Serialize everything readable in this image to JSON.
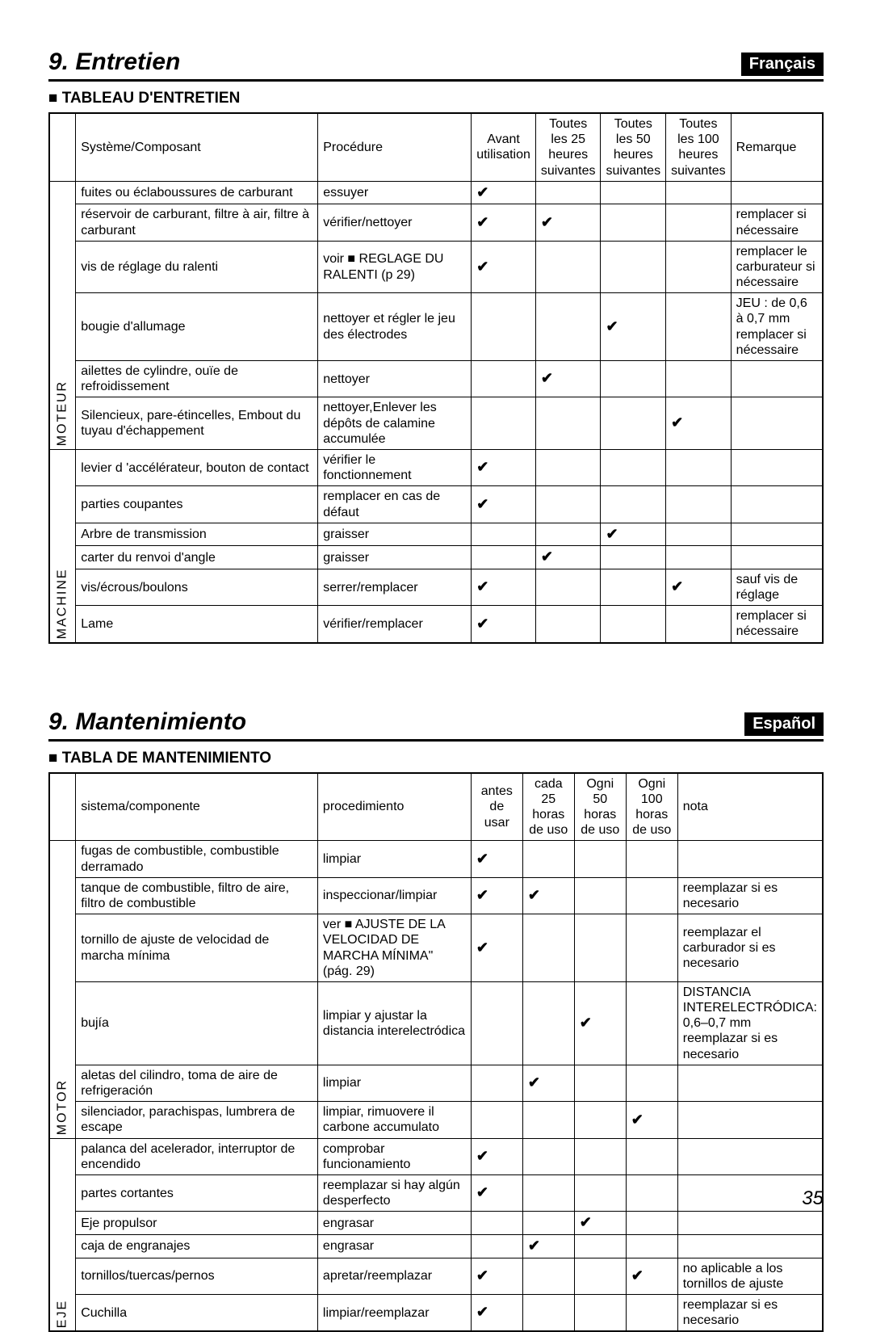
{
  "page_number": "35",
  "checkmark_glyph": "✔",
  "colors": {
    "text": "#000000",
    "background": "#ffffff",
    "badge_bg": "#000000",
    "badge_fg": "#ffffff",
    "border": "#000000"
  },
  "sections": [
    {
      "title": "9. Entretien",
      "lang_badge": "Français",
      "table_title": "TABLEAU D'ENTRETIEN",
      "headers": {
        "system": "Système/Composant",
        "procedure": "Procédure",
        "col1": "Avant utilisation",
        "col2": "Toutes les 25 heures suivantes",
        "col3": "Toutes les 50 heures suivantes",
        "col4": "Toutes les 100 heures suivantes",
        "note": "Remarque"
      },
      "groups": [
        {
          "category": "MOTEUR",
          "rows": [
            {
              "system": "fuites ou éclaboussures de carburant",
              "procedure": "essuyer",
              "c": [
                true,
                false,
                false,
                false
              ],
              "note": ""
            },
            {
              "system": "réservoir de carburant, filtre à air, filtre à carburant",
              "procedure": "vérifier/nettoyer",
              "c": [
                true,
                true,
                false,
                false
              ],
              "note": "remplacer si nécessaire"
            },
            {
              "system": "vis de réglage du ralenti",
              "procedure": "voir ■ REGLAGE DU RALENTI (p 29)",
              "c": [
                true,
                false,
                false,
                false
              ],
              "note": "remplacer le carburateur si nécessaire"
            },
            {
              "system": "bougie d'allumage",
              "procedure": "nettoyer et régler le jeu des électrodes",
              "c": [
                false,
                false,
                true,
                false
              ],
              "note": "JEU : de 0,6 à 0,7 mm remplacer si nécessaire"
            },
            {
              "system": "ailettes de cylindre, ouïe de refroidissement",
              "procedure": "nettoyer",
              "c": [
                false,
                true,
                false,
                false
              ],
              "note": ""
            },
            {
              "system": "Silencieux, pare-étincelles, Embout du tuyau d'échappement",
              "procedure": "nettoyer,Enlever les dépôts de calamine accumulée",
              "c": [
                false,
                false,
                false,
                true
              ],
              "note": ""
            }
          ]
        },
        {
          "category": "MACHINE",
          "rows": [
            {
              "system": "levier d 'accélérateur, bouton de contact",
              "procedure": "vérifier le fonctionnement",
              "c": [
                true,
                false,
                false,
                false
              ],
              "note": ""
            },
            {
              "system": "parties coupantes",
              "procedure": "remplacer en cas de défaut",
              "c": [
                true,
                false,
                false,
                false
              ],
              "note": ""
            },
            {
              "system": "Arbre de transmission",
              "procedure": "graisser",
              "c": [
                false,
                false,
                true,
                false
              ],
              "note": ""
            },
            {
              "system": "carter du renvoi d'angle",
              "procedure": "graisser",
              "c": [
                false,
                true,
                false,
                false
              ],
              "note": ""
            },
            {
              "system": "vis/écrous/boulons",
              "procedure": "serrer/remplacer",
              "c": [
                true,
                false,
                false,
                true
              ],
              "note": "sauf vis de réglage"
            },
            {
              "system": "Lame",
              "procedure": "vérifier/remplacer",
              "c": [
                true,
                false,
                false,
                false
              ],
              "note": "remplacer si nécessaire"
            }
          ]
        }
      ]
    },
    {
      "title": "9. Mantenimiento",
      "lang_badge": "Español",
      "table_title": "TABLA DE MANTENIMIENTO",
      "headers": {
        "system": "sistema/componente",
        "procedure": "procedimiento",
        "col1": "antes de usar",
        "col2": "cada 25 horas de uso",
        "col3": "Ogni 50 horas de uso",
        "col4": "Ogni 100 horas de uso",
        "note": "nota"
      },
      "groups": [
        {
          "category": "MOTOR",
          "rows": [
            {
              "system": "fugas de combustible, combustible derramado",
              "procedure": "limpiar",
              "c": [
                true,
                false,
                false,
                false
              ],
              "note": ""
            },
            {
              "system": "tanque de combustible, filtro de aire, filtro de combustible",
              "procedure": "inspeccionar/limpiar",
              "c": [
                true,
                true,
                false,
                false
              ],
              "note": "reemplazar si es necesario"
            },
            {
              "system": "tornillo de ajuste de velocidad de marcha mínima",
              "procedure": "ver ■ AJUSTE DE LA VELOCIDAD DE MARCHA MÍNIMA\" (pág. 29)",
              "c": [
                true,
                false,
                false,
                false
              ],
              "note": "reemplazar el carburador si es necesario"
            },
            {
              "system": "bujía",
              "procedure": "limpiar y ajustar la distancia interelectródica",
              "c": [
                false,
                false,
                true,
                false
              ],
              "note": "DISTANCIA INTERELECTRÓDICA: 0,6–0,7 mm reemplazar si es necesario"
            },
            {
              "system": "aletas del cilindro, toma de aire de refrigeración",
              "procedure": "limpiar",
              "c": [
                false,
                true,
                false,
                false
              ],
              "note": ""
            },
            {
              "system": "silenciador, parachispas, lumbrera de escape",
              "procedure": "limpiar, rimuovere il carbone accumulato",
              "c": [
                false,
                false,
                false,
                true
              ],
              "note": ""
            }
          ]
        },
        {
          "category": "EJE",
          "rows": [
            {
              "system": "palanca del acelerador, interruptor de encendido",
              "procedure": "comprobar funcionamiento",
              "c": [
                true,
                false,
                false,
                false
              ],
              "note": ""
            },
            {
              "system": "partes cortantes",
              "procedure": "reemplazar si hay algún desperfecto",
              "c": [
                true,
                false,
                false,
                false
              ],
              "note": ""
            },
            {
              "system": "Eje propulsor",
              "procedure": "engrasar",
              "c": [
                false,
                false,
                true,
                false
              ],
              "note": ""
            },
            {
              "system": "caja de engranajes",
              "procedure": "engrasar",
              "c": [
                false,
                true,
                false,
                false
              ],
              "note": ""
            },
            {
              "system": "tornillos/tuercas/pernos",
              "procedure": "apretar/reemplazar",
              "c": [
                true,
                false,
                false,
                true
              ],
              "note": "no aplicable a los tornillos de ajuste"
            },
            {
              "system": "Cuchilla",
              "procedure": "limpiar/reemplazar",
              "c": [
                true,
                false,
                false,
                false
              ],
              "note": "reemplazar si es necesario"
            }
          ]
        }
      ]
    }
  ]
}
